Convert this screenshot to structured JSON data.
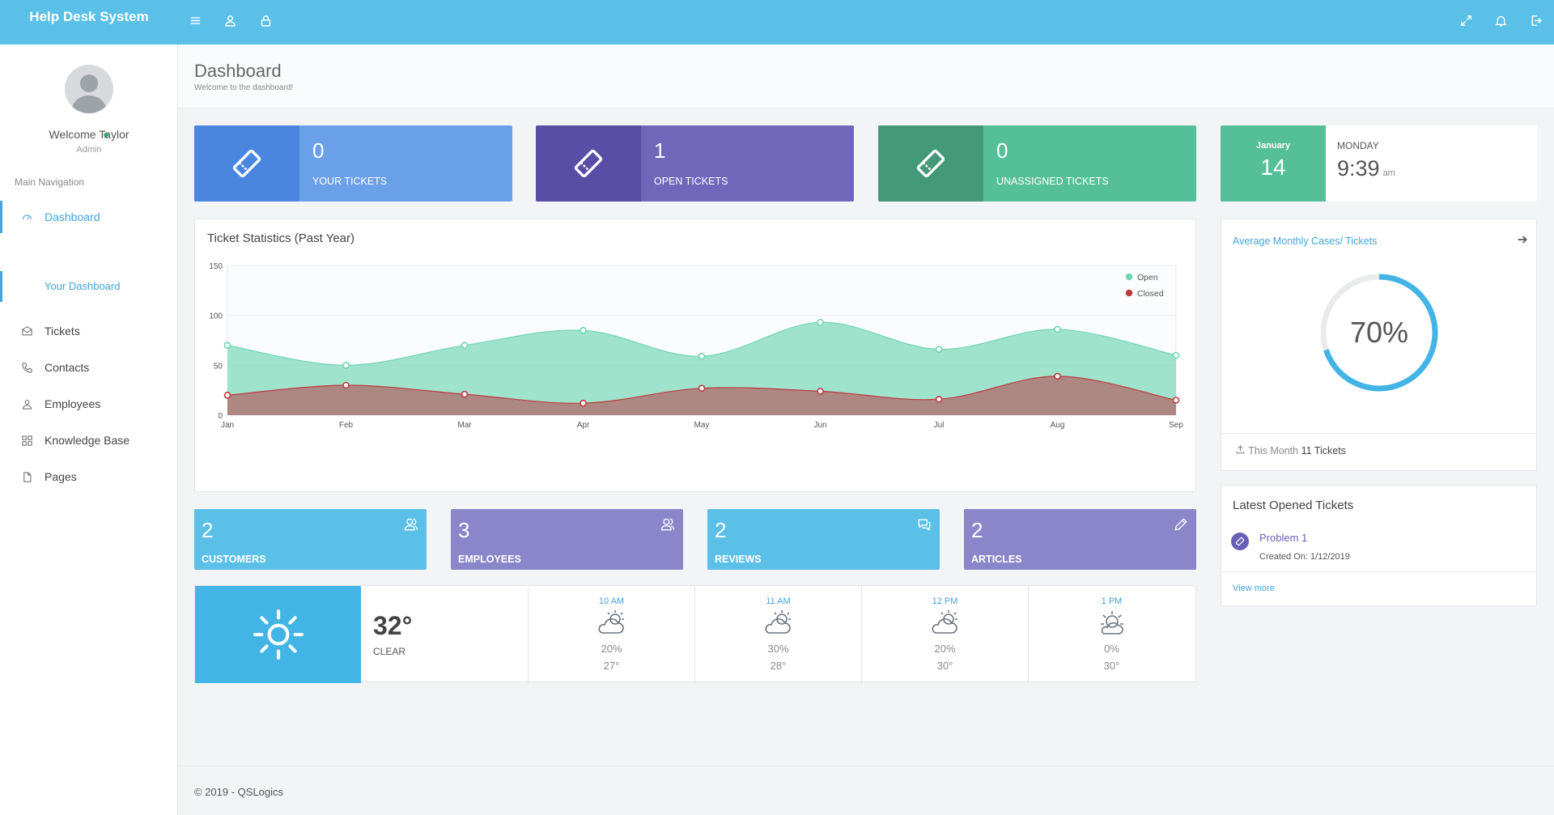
{
  "header": {
    "brand": "Help Desk System"
  },
  "user": {
    "name": "Welcome Taylor",
    "role": "Admin"
  },
  "sidebar": {
    "nav_title": "Main Navigation",
    "items": [
      {
        "label": "Dashboard",
        "icon": "dashboard-icon"
      },
      {
        "label": "Tickets",
        "icon": "ticket-icon"
      },
      {
        "label": "Contacts",
        "icon": "phone-icon"
      },
      {
        "label": "Employees",
        "icon": "user-icon"
      },
      {
        "label": "Knowledge Base",
        "icon": "grid-icon"
      },
      {
        "label": "Pages",
        "icon": "file-icon"
      }
    ],
    "sub_item": "Your Dashboard"
  },
  "page": {
    "title": "Dashboard",
    "subtitle": "Welcome to the dashboard!"
  },
  "stats": [
    {
      "value": "0",
      "label": "YOUR TICKETS",
      "color": "#6aa0e8",
      "icon_bg": "#4a86e0"
    },
    {
      "value": "1",
      "label": "OPEN TICKETS",
      "color": "#7266ba",
      "icon_bg": "#5a4da6"
    },
    {
      "value": "0",
      "label": "UNASSIGNED TICKETS",
      "color": "#55bf9a",
      "icon_bg": "#44997b"
    }
  ],
  "date": {
    "month": "January",
    "day": "14",
    "weekday": "MONDAY",
    "time": "9:39",
    "ampm": "am"
  },
  "chart_data": {
    "type": "area",
    "title": "Ticket Statistics (Past Year)",
    "categories": [
      "Jan",
      "Feb",
      "Mar",
      "Apr",
      "May",
      "Jun",
      "Jul",
      "Aug",
      "Sep"
    ],
    "ylim": [
      0,
      150
    ],
    "yticks": [
      0,
      50,
      100,
      150
    ],
    "legend_position": "top-right",
    "series": [
      {
        "name": "Open",
        "color": "#6fd6b3",
        "values": [
          70,
          50,
          70,
          85,
          59,
          93,
          66,
          86,
          60
        ]
      },
      {
        "name": "Closed",
        "color": "#c0393f",
        "values": [
          20,
          30,
          21,
          12,
          27,
          24,
          16,
          39,
          15
        ]
      }
    ]
  },
  "gauge": {
    "title": "Average Monthly Cases/ Tickets",
    "percent": 70,
    "label": "70%",
    "footer_prefix": "This Month",
    "footer_value": "11 Tickets",
    "color": "#42b4e6"
  },
  "latest": {
    "title": "Latest Opened Tickets",
    "tickets": [
      {
        "title": "Problem 1",
        "created": "Created On: 1/12/2019"
      }
    ],
    "view_more": "View more"
  },
  "small_stats": [
    {
      "value": "2",
      "label": "CUSTOMERS",
      "color": "#5bc0e8",
      "icon": "users-icon"
    },
    {
      "value": "3",
      "label": "EMPLOYEES",
      "color": "#8b85c9",
      "icon": "users-icon"
    },
    {
      "value": "2",
      "label": "REVIEWS",
      "color": "#5bc0e8",
      "icon": "chat-icon"
    },
    {
      "value": "2",
      "label": "ARTICLES",
      "color": "#8b85c9",
      "icon": "pencil-icon"
    }
  ],
  "weather": {
    "current": {
      "temp": "32°",
      "condition": "CLEAR",
      "icon": "sun-icon"
    },
    "hourly": [
      {
        "time": "10 AM",
        "pct": "20%",
        "temp": "27°",
        "icon": "cloud-sun-icon"
      },
      {
        "time": "11 AM",
        "pct": "30%",
        "temp": "28°",
        "icon": "cloud-sun-icon"
      },
      {
        "time": "12 PM",
        "pct": "20%",
        "temp": "30°",
        "icon": "cloud-sun-icon"
      },
      {
        "time": "1 PM",
        "pct": "0%",
        "temp": "30°",
        "icon": "sun-cloud-icon"
      }
    ]
  },
  "footer": {
    "text": "© 2019 - QSLogics"
  }
}
